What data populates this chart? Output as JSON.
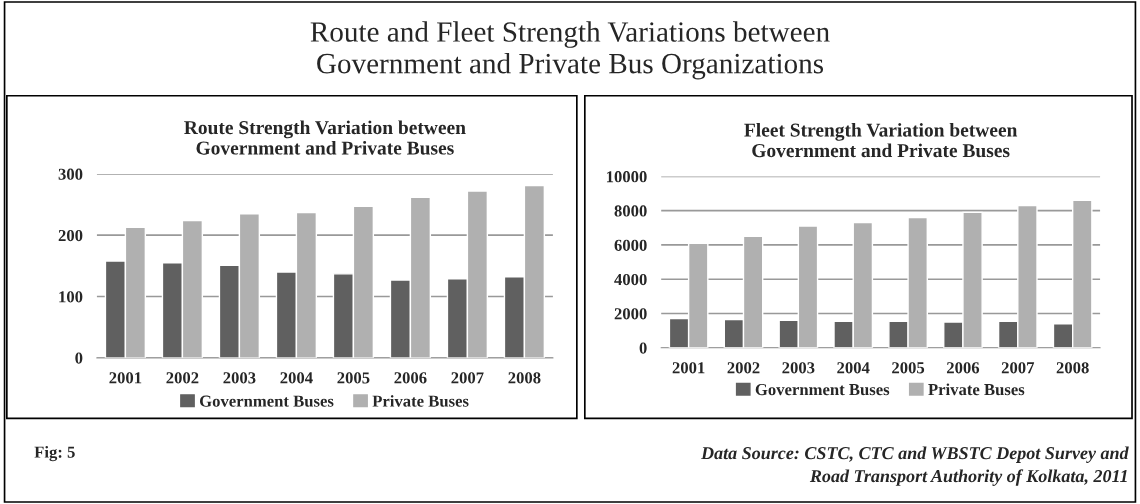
{
  "chart_data": [
    {
      "type": "bar",
      "title": "Route Strength Variation between\nGovernment and Private Buses",
      "categories": [
        "2001",
        "2002",
        "2003",
        "2004",
        "2005",
        "2006",
        "2007",
        "2008"
      ],
      "series": [
        {
          "name": "Government Buses",
          "color": "#606060",
          "values": [
            158,
            155,
            151,
            140,
            137,
            127,
            129,
            132
          ]
        },
        {
          "name": "Private Buses",
          "color": "#b0b0b0",
          "values": [
            213,
            224,
            235,
            237,
            247,
            262,
            272,
            281
          ]
        }
      ],
      "ylim": [
        0,
        300
      ],
      "yticks": [
        0,
        100,
        200,
        300
      ],
      "grid": "y",
      "legend": "bottom",
      "annotations": [
        "Route and Fleet Strength Variations between\nGovernment and Private Bus Organizations",
        "Fig: 5"
      ]
    },
    {
      "type": "bar",
      "title": "Fleet Strength Variation between\nGovernment and Private Buses",
      "categories": [
        "2001",
        "2002",
        "2003",
        "2004",
        "2005",
        "2006",
        "2007",
        "2008"
      ],
      "series": [
        {
          "name": "Government Buses",
          "color": "#606060",
          "values": [
            1700,
            1650,
            1600,
            1550,
            1550,
            1500,
            1550,
            1400
          ]
        },
        {
          "name": "Private Buses",
          "color": "#b0b0b0",
          "values": [
            6100,
            6500,
            7100,
            7300,
            7600,
            7900,
            8300,
            8600
          ]
        }
      ],
      "ylim": [
        0,
        10000
      ],
      "yticks": [
        0,
        2000,
        4000,
        6000,
        8000,
        10000
      ],
      "grid": "y",
      "legend": "bottom",
      "annotations": [
        "Data Source: CSTC, CTC and WBSTC Depot Survey and\nRoad Transport Authority of Kolkata, 2011"
      ]
    }
  ]
}
